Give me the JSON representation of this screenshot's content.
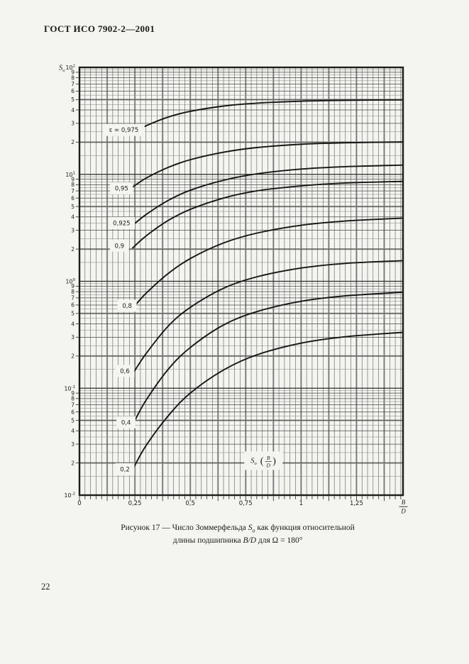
{
  "page": {
    "header": "ГОСТ ИСО 7902-2—2001",
    "page_number": "22",
    "caption": {
      "line1_pre": "Рисунок 17 — Число Зоммерфельда ",
      "so": "S",
      "so_sub": "o",
      "line1_post": " как функция относительной",
      "line2_pre": "длины подшипника ",
      "bd": "B/D",
      "line2_mid": " для ",
      "omega": "Ω",
      "line2_post": " = 180°"
    }
  },
  "chart_data": {
    "type": "line",
    "title": "Число Зоммерфельда So как функция относительной длины подшипника B/D для Ω = 180°",
    "x_scale": "linear",
    "y_scale": "log",
    "x_range": [
      0,
      1.46
    ],
    "y_range": [
      0.01,
      100
    ],
    "grid": "on",
    "y_axis": {
      "symbol": "S",
      "sub": "o",
      "base": "10"
    },
    "x_axis_fraction": {
      "num": "B",
      "den": "D"
    },
    "y_decades": [
      {
        "sup": "2",
        "value": 100
      },
      {
        "sup": "1",
        "value": 10
      },
      {
        "sup": "0",
        "value": 1
      },
      {
        "sup": "-1",
        "value": 0.1
      },
      {
        "sup": "-2",
        "value": 0.01
      }
    ],
    "y_minor_labels": [
      9,
      8,
      7,
      6,
      5,
      4,
      3,
      2
    ],
    "x_ticks": [
      {
        "value": 0,
        "label": "0"
      },
      {
        "value": 0.25,
        "label": "0,25"
      },
      {
        "value": 0.5,
        "label": "0,5"
      },
      {
        "value": 0.75,
        "label": "0,75"
      },
      {
        "value": 1,
        "label": "1"
      },
      {
        "value": 1.25,
        "label": "1,25"
      }
    ],
    "annotation": {
      "s": "S",
      "sub": "o",
      "num": "B",
      "den": "D",
      "label_at": [
        0.83,
        0.021
      ]
    },
    "series": [
      {
        "eps": "0.975",
        "label": "ε = 0,975",
        "label_at": [
          0.2,
          26
        ],
        "points": [
          [
            0.235,
            24
          ],
          [
            0.3,
            28.4
          ],
          [
            0.4,
            34.3
          ],
          [
            0.5,
            38.8
          ],
          [
            0.65,
            43.5
          ],
          [
            0.8,
            46.3
          ],
          [
            1.0,
            48.3
          ],
          [
            1.2,
            49.2
          ],
          [
            1.46,
            49.7
          ]
        ]
      },
      {
        "eps": "0.95",
        "label": "0,95",
        "label_at": [
          0.19,
          7.4
        ],
        "points": [
          [
            0.24,
            7.6
          ],
          [
            0.3,
            9.2
          ],
          [
            0.4,
            11.6
          ],
          [
            0.5,
            13.7
          ],
          [
            0.65,
            16.1
          ],
          [
            0.8,
            17.8
          ],
          [
            1.0,
            19.1
          ],
          [
            1.2,
            19.7
          ],
          [
            1.46,
            20.1
          ]
        ]
      },
      {
        "eps": "0.925",
        "label": "0,925",
        "label_at": [
          0.19,
          3.5
        ],
        "points": [
          [
            0.237,
            3.3
          ],
          [
            0.3,
            4.2
          ],
          [
            0.4,
            5.7
          ],
          [
            0.5,
            7.1
          ],
          [
            0.65,
            8.8
          ],
          [
            0.8,
            10.1
          ],
          [
            1.0,
            11.2
          ],
          [
            1.2,
            11.8
          ],
          [
            1.46,
            12.2
          ]
        ]
      },
      {
        "eps": "0.9",
        "label": "0,9",
        "label_at": [
          0.18,
          2.15
        ],
        "points": [
          [
            0.24,
            2.05
          ],
          [
            0.3,
            2.65
          ],
          [
            0.4,
            3.7
          ],
          [
            0.5,
            4.7
          ],
          [
            0.65,
            6.0
          ],
          [
            0.8,
            7.0
          ],
          [
            1.0,
            7.8
          ],
          [
            1.2,
            8.3
          ],
          [
            1.46,
            8.6
          ]
        ]
      },
      {
        "eps": "0.8",
        "label": "0,8",
        "label_at": [
          0.215,
          0.59
        ],
        "points": [
          [
            0.25,
            0.59
          ],
          [
            0.3,
            0.77
          ],
          [
            0.4,
            1.18
          ],
          [
            0.5,
            1.63
          ],
          [
            0.65,
            2.28
          ],
          [
            0.8,
            2.82
          ],
          [
            1.0,
            3.34
          ],
          [
            1.2,
            3.66
          ],
          [
            1.46,
            3.9
          ]
        ]
      },
      {
        "eps": "0.6",
        "label": "0,6",
        "label_at": [
          0.205,
          0.145
        ],
        "points": [
          [
            0.244,
            0.14
          ],
          [
            0.3,
            0.21
          ],
          [
            0.4,
            0.38
          ],
          [
            0.5,
            0.57
          ],
          [
            0.65,
            0.86
          ],
          [
            0.8,
            1.1
          ],
          [
            1.0,
            1.33
          ],
          [
            1.2,
            1.47
          ],
          [
            1.46,
            1.56
          ]
        ]
      },
      {
        "eps": "0.4",
        "label": "0,4",
        "label_at": [
          0.21,
          0.048
        ],
        "points": [
          [
            0.25,
            0.05
          ],
          [
            0.3,
            0.077
          ],
          [
            0.4,
            0.15
          ],
          [
            0.5,
            0.24
          ],
          [
            0.65,
            0.39
          ],
          [
            0.8,
            0.52
          ],
          [
            1.0,
            0.65
          ],
          [
            1.2,
            0.73
          ],
          [
            1.46,
            0.79
          ]
        ]
      },
      {
        "eps": "0.2",
        "label": "0,2",
        "label_at": [
          0.205,
          0.0175
        ],
        "points": [
          [
            0.244,
            0.018
          ],
          [
            0.3,
            0.029
          ],
          [
            0.4,
            0.055
          ],
          [
            0.5,
            0.09
          ],
          [
            0.65,
            0.148
          ],
          [
            0.8,
            0.205
          ],
          [
            1.0,
            0.264
          ],
          [
            1.2,
            0.303
          ],
          [
            1.46,
            0.333
          ]
        ]
      }
    ]
  }
}
